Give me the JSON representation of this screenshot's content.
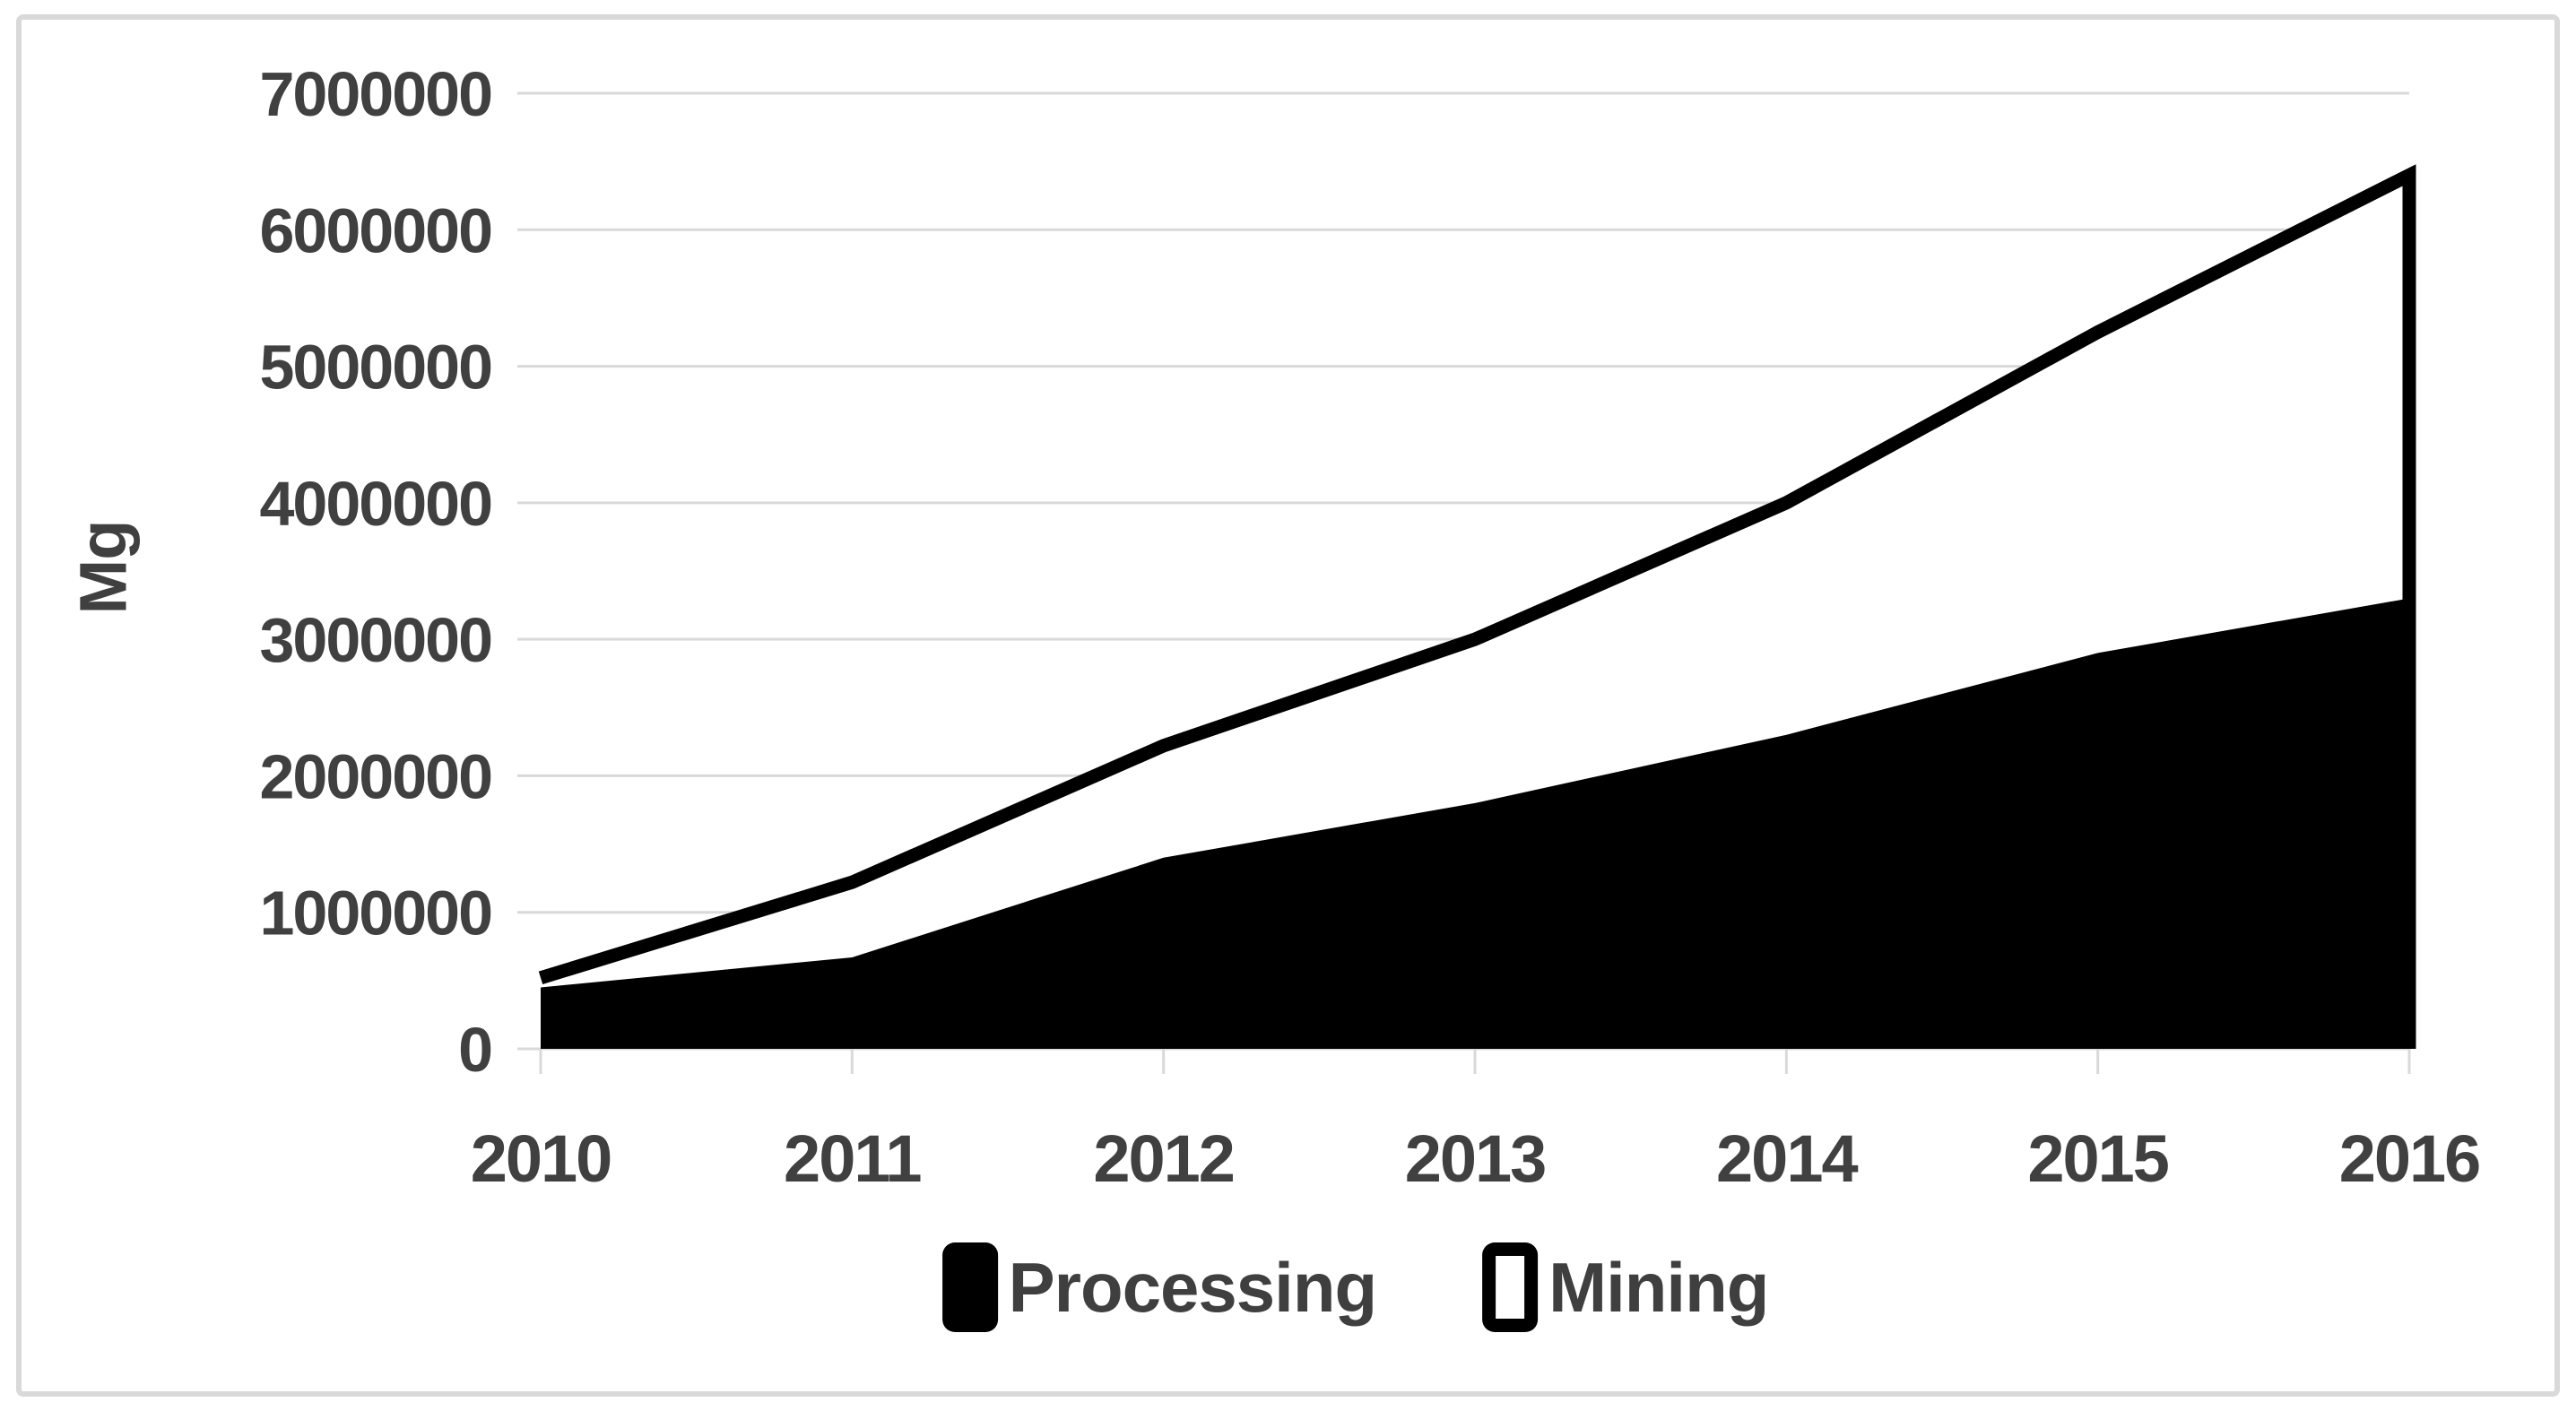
{
  "chart_data": {
    "type": "area",
    "stacked": true,
    "title": "",
    "xlabel": "",
    "ylabel": "Mg",
    "x": [
      2010,
      2011,
      2012,
      2013,
      2014,
      2015,
      2016
    ],
    "x_tick_labels": [
      "2010",
      "2011",
      "2012",
      "2013",
      "2014",
      "2015",
      "2016"
    ],
    "series": [
      {
        "name": "Processing",
        "values": [
          450000,
          670000,
          1400000,
          1800000,
          2300000,
          2900000,
          3300000
        ],
        "fill": "#000000"
      },
      {
        "name": "Mining",
        "values": [
          70000,
          550000,
          820000,
          1200000,
          1700000,
          2350000,
          3100000
        ],
        "fill": "#ffffff"
      }
    ],
    "stacked_totals": [
      520000,
      1220000,
      2220000,
      3000000,
      4000000,
      5250000,
      6400000
    ],
    "ylim": [
      0,
      7000000
    ],
    "y_tick_step": 1000000,
    "y_tick_labels": [
      "0",
      "1000000",
      "2000000",
      "3000000",
      "4000000",
      "5000000",
      "6000000",
      "7000000"
    ],
    "grid": true,
    "legend_position": "bottom",
    "total_line_color": "#000000"
  },
  "colors": {
    "grid": "#d9d9d9",
    "frame_border": "#d9d9d9",
    "tick": "#d9d9d9",
    "axis_text": "#404040",
    "legend_text": "#3f3f3f",
    "background": "#ffffff",
    "processing_fill": "#000000",
    "mining_fill": "#ffffff",
    "line": "#000000"
  },
  "legend": {
    "items": [
      {
        "label": "Processing",
        "swatch": "black-filled-square"
      },
      {
        "label": "Mining",
        "swatch": "white-square-black-border"
      }
    ]
  }
}
